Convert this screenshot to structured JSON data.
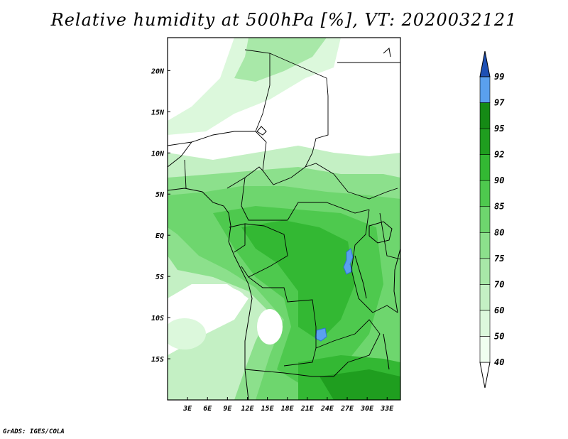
{
  "title": "Relative humidity at 500hPa [%], VT: 2020032121",
  "credit": "GrADS: IGES/COLA",
  "map": {
    "lon_range": [
      0,
      35
    ],
    "lat_range": [
      -20,
      24
    ],
    "lat_ticks": [
      {
        "value": 20,
        "label": "20N"
      },
      {
        "value": 15,
        "label": "15N"
      },
      {
        "value": 10,
        "label": "10N"
      },
      {
        "value": 5,
        "label": "5N"
      },
      {
        "value": 0,
        "label": "EQ"
      },
      {
        "value": -5,
        "label": "5S"
      },
      {
        "value": -10,
        "label": "10S"
      },
      {
        "value": -15,
        "label": "15S"
      }
    ],
    "lon_ticks": [
      {
        "value": 3,
        "label": "3E"
      },
      {
        "value": 6,
        "label": "6E"
      },
      {
        "value": 9,
        "label": "9E"
      },
      {
        "value": 12,
        "label": "12E"
      },
      {
        "value": 15,
        "label": "15E"
      },
      {
        "value": 18,
        "label": "18E"
      },
      {
        "value": 21,
        "label": "21E"
      },
      {
        "value": 24,
        "label": "24E"
      },
      {
        "value": 27,
        "label": "27E"
      },
      {
        "value": 30,
        "label": "30E"
      },
      {
        "value": 33,
        "label": "33E"
      }
    ]
  },
  "colorbar": {
    "levels": [
      {
        "label": "40",
        "color": "#f0fff0"
      },
      {
        "label": "50",
        "color": "#dcf8dc"
      },
      {
        "label": "60",
        "color": "#c4f0c4"
      },
      {
        "label": "70",
        "color": "#a8e8a8"
      },
      {
        "label": "75",
        "color": "#8ce08c"
      },
      {
        "label": "80",
        "color": "#6ed66e"
      },
      {
        "label": "85",
        "color": "#4ec94e"
      },
      {
        "label": "90",
        "color": "#33b833"
      },
      {
        "label": "92",
        "color": "#1f9e1f"
      },
      {
        "label": "95",
        "color": "#158a15"
      },
      {
        "label": "97",
        "color": "#5aa0ee"
      },
      {
        "label": "99",
        "color": "#2f72d8"
      }
    ],
    "top_color": "#1e50b4",
    "bottom_color": "#ffffff"
  }
}
